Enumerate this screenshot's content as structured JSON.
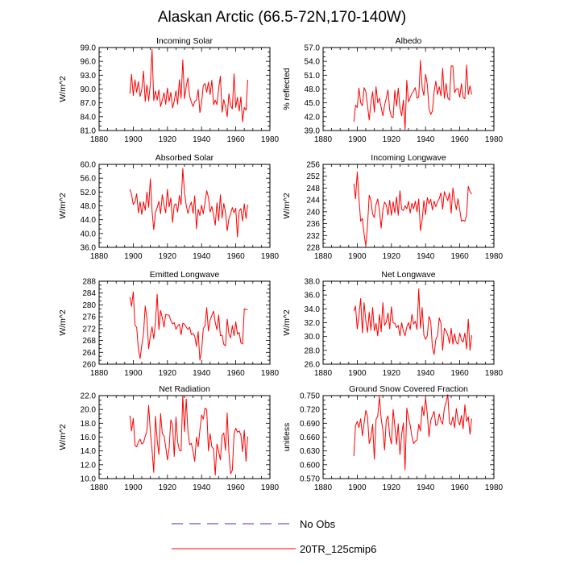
{
  "title": "Alaskan Arctic (66.5-72N,170-140W)",
  "legend": [
    {
      "label": "No Obs",
      "color": "#3333cc",
      "style": "dashed"
    },
    {
      "label": "20TR_125cmip6",
      "color": "#ff0000",
      "style": "solid"
    }
  ],
  "chart_data": [
    {
      "type": "line",
      "title": "Incoming Solar",
      "ylabel": "W/m^2",
      "xlim": [
        1880,
        1980
      ],
      "ylim": [
        81.0,
        99.0
      ],
      "xticks": [
        1880,
        1900,
        1920,
        1940,
        1960,
        1980
      ],
      "yticks": [
        "81.0",
        "84.0",
        "87.0",
        "90.0",
        "93.0",
        "96.0",
        "99.0"
      ],
      "series": [
        {
          "name": "20TR_125cmip6",
          "color": "#ff0000",
          "x_start": 1898,
          "values": [
            89.0,
            93.2,
            88.6,
            92.0,
            89.3,
            91.6,
            88.4,
            89.9,
            93.9,
            87.3,
            90.9,
            87.4,
            91.0,
            98.6,
            87.5,
            89.6,
            87.6,
            89.8,
            86.2,
            87.6,
            89.2,
            86.7,
            90.2,
            87.3,
            89.3,
            85.9,
            87.4,
            89.6,
            86.7,
            92.0,
            88.0,
            96.3,
            87.9,
            90.6,
            92.4,
            88.4,
            87.2,
            86.2,
            87.3,
            87.6,
            89.9,
            84.9,
            87.0,
            90.8,
            91.2,
            89.3,
            91.5,
            88.8,
            91.9,
            86.6,
            87.6,
            86.6,
            90.1,
            92.8,
            85.0,
            87.7,
            86.2,
            84.0,
            89.0,
            86.4,
            85.7,
            93.3,
            86.0,
            88.2,
            85.2,
            88.3,
            82.9,
            86.0,
            85.4,
            92.0
          ]
        }
      ]
    },
    {
      "type": "line",
      "title": "Albedo",
      "ylabel": "% reflected",
      "xlim": [
        1880,
        1980
      ],
      "ylim": [
        39.0,
        57.0
      ],
      "xticks": [
        1880,
        1900,
        1920,
        1940,
        1960,
        1980
      ],
      "yticks": [
        "39.0",
        "42.0",
        "45.0",
        "48.0",
        "51.0",
        "54.0",
        "57.0"
      ],
      "series": [
        {
          "name": "20TR_125cmip6",
          "color": "#ff0000",
          "x_start": 1898,
          "values": [
            40.9,
            44.5,
            44.0,
            48.2,
            45.0,
            44.4,
            48.3,
            47.5,
            44.5,
            41.3,
            45.1,
            47.4,
            43.0,
            48.5,
            45.0,
            46.0,
            44.0,
            42.2,
            44.5,
            46.0,
            47.8,
            43.5,
            42.0,
            41.8,
            47.7,
            44.3,
            48.2,
            43.9,
            42.2,
            45.6,
            39.2,
            49.9,
            45.2,
            46.2,
            47.0,
            47.6,
            48.3,
            46.0,
            46.3,
            54.2,
            48.3,
            46.6,
            51.2,
            49.0,
            43.8,
            42.5,
            43.2,
            47.4,
            49.7,
            46.8,
            48.5,
            46.5,
            52.5,
            46.0,
            49.2,
            46.1,
            45.6,
            53.0,
            53.0,
            47.2,
            48.0,
            48.1,
            46.2,
            49.2,
            46.2,
            45.9,
            53.2,
            46.8,
            48.7,
            46.8
          ]
        }
      ]
    },
    {
      "type": "line",
      "title": "Absorbed Solar",
      "ylabel": "W/m^2",
      "xlim": [
        1880,
        1980
      ],
      "ylim": [
        36.0,
        60.0
      ],
      "xticks": [
        1880,
        1900,
        1920,
        1940,
        1960,
        1980
      ],
      "yticks": [
        "36.0",
        "40.0",
        "44.0",
        "48.0",
        "52.0",
        "56.0",
        "60.0"
      ],
      "series": [
        {
          "name": "20TR_125cmip6",
          "color": "#ff0000",
          "x_start": 1898,
          "values": [
            52.8,
            51.3,
            48.4,
            49.2,
            51.5,
            46.0,
            49.2,
            45.5,
            49.2,
            46.7,
            52.0,
            47.6,
            55.8,
            46.5,
            41.1,
            46.2,
            47.5,
            49.3,
            45.7,
            51.2,
            48.2,
            46.0,
            52.8,
            47.7,
            50.3,
            43.2,
            48.2,
            48.6,
            46.2,
            51.0,
            48.3,
            58.8,
            51.8,
            48.2,
            45.8,
            47.8,
            49.1,
            45.8,
            50.9,
            41.4,
            47.0,
            45.2,
            48.2,
            45.7,
            49.0,
            52.4,
            50.5,
            46.2,
            47.8,
            45.4,
            42.4,
            48.9,
            43.7,
            51.2,
            44.5,
            48.7,
            46.1,
            40.8,
            44.3,
            45.7,
            47.5,
            46.0,
            47.3,
            39.0,
            46.5,
            47.2,
            43.6,
            48.6,
            44.3,
            48.3
          ]
        }
      ]
    },
    {
      "type": "line",
      "title": "Incoming Longwave",
      "ylabel": "W/m^2",
      "xlim": [
        1880,
        1980
      ],
      "ylim": [
        228,
        256
      ],
      "xticks": [
        1880,
        1900,
        1920,
        1940,
        1960,
        1980
      ],
      "yticks": [
        "228",
        "232",
        "236",
        "240",
        "244",
        "248",
        "252",
        "256"
      ],
      "series": [
        {
          "name": "20TR_125cmip6",
          "color": "#ff0000",
          "x_start": 1898,
          "values": [
            249.5,
            244.4,
            253.4,
            244.5,
            236.8,
            237.8,
            232.4,
            228.5,
            235.2,
            245.6,
            243.8,
            239.2,
            238.1,
            242.5,
            244.3,
            240.4,
            234.5,
            240.6,
            243.3,
            242.3,
            238.9,
            243.9,
            238.8,
            243.4,
            239.6,
            245.0,
            238.8,
            247.1,
            240.9,
            240.4,
            242.0,
            241.0,
            243.5,
            239.6,
            242.9,
            241.0,
            243.6,
            240.0,
            244.3,
            233.6,
            237.3,
            243.8,
            239.0,
            244.8,
            242.8,
            244.2,
            240.6,
            243.6,
            241.7,
            243.4,
            244.4,
            246.4,
            240.9,
            246.8,
            245.2,
            243.8,
            246.4,
            239.5,
            248.0,
            244.1,
            240.7,
            244.4,
            240.7,
            236.8,
            237.2,
            236.8,
            238.8,
            248.6,
            246.8,
            246.0
          ]
        }
      ]
    },
    {
      "type": "line",
      "title": "Emitted Longwave",
      "ylabel": "W/m^2",
      "xlim": [
        1880,
        1980
      ],
      "ylim": [
        260,
        288
      ],
      "xticks": [
        1880,
        1900,
        1920,
        1940,
        1960,
        1980
      ],
      "yticks": [
        "260",
        "264",
        "268",
        "272",
        "276",
        "280",
        "284",
        "288"
      ],
      "series": [
        {
          "name": "20TR_125cmip6",
          "color": "#ff0000",
          "x_start": 1898,
          "values": [
            282.6,
            279.5,
            284.4,
            273.2,
            272.4,
            265.1,
            261.9,
            266.5,
            270.2,
            279.6,
            275.4,
            265.2,
            269.5,
            272.6,
            268.6,
            274.1,
            283.6,
            271.7,
            278.1,
            275.7,
            272.5,
            276.8,
            276.6,
            276.5,
            274.7,
            273.6,
            274.0,
            271.8,
            272.9,
            273.5,
            269.9,
            273.8,
            273.5,
            272.5,
            271.7,
            272.5,
            270.0,
            270.4,
            269.4,
            266.0,
            271.0,
            261.4,
            264.5,
            272.1,
            272.9,
            279.1,
            271.2,
            274.9,
            276.4,
            277.9,
            274.1,
            271.6,
            276.6,
            269.6,
            269.8,
            266.7,
            266.2,
            275.2,
            270.2,
            268.9,
            273.0,
            269.6,
            274.3,
            270.1,
            270.7,
            267.2,
            266.8,
            278.7,
            278.4,
            278.5
          ]
        }
      ]
    },
    {
      "type": "line",
      "title": "Net Longwave",
      "ylabel": "W/m^2",
      "xlim": [
        1880,
        1980
      ],
      "ylim": [
        26.0,
        38.0
      ],
      "xticks": [
        1880,
        1900,
        1920,
        1940,
        1960,
        1980
      ],
      "yticks": [
        "26.0",
        "28.0",
        "30.0",
        "32.0",
        "34.0",
        "36.0",
        "38.0"
      ],
      "series": [
        {
          "name": "20TR_125cmip6",
          "color": "#ff0000",
          "x_start": 1898,
          "values": [
            33.7,
            34.4,
            31.1,
            33.0,
            35.5,
            30.5,
            34.9,
            32.3,
            30.6,
            33.5,
            30.9,
            34.2,
            30.8,
            31.9,
            30.1,
            33.2,
            30.7,
            34.9,
            31.6,
            32.1,
            33.4,
            31.1,
            34.3,
            32.0,
            31.9,
            31.3,
            31.6,
            30.1,
            32.0,
            30.8,
            30.1,
            31.4,
            32.0,
            31.0,
            33.2,
            31.8,
            32.2,
            31.0,
            36.9,
            31.2,
            34.2,
            30.2,
            29.6,
            30.1,
            32.9,
            32.2,
            28.4,
            27.4,
            29.6,
            30.1,
            32.7,
            31.9,
            28.0,
            31.2,
            30.8,
            30.2,
            29.0,
            31.2,
            28.9,
            30.4,
            29.1,
            28.9,
            30.5,
            29.5,
            29.2,
            30.5,
            28.2,
            32.5,
            28.0,
            30.2
          ]
        }
      ]
    },
    {
      "type": "line",
      "title": "Net Radiation",
      "ylabel": "W/m^2",
      "xlim": [
        1880,
        1980
      ],
      "ylim": [
        10.0,
        22.0
      ],
      "xticks": [
        1880,
        1900,
        1920,
        1940,
        1960,
        1980
      ],
      "yticks": [
        "10.0",
        "12.0",
        "14.0",
        "16.0",
        "18.0",
        "20.0",
        "22.0"
      ],
      "series": [
        {
          "name": "20TR_125cmip6",
          "color": "#ff0000",
          "x_start": 1898,
          "values": [
            19.1,
            16.9,
            18.7,
            14.8,
            14.6,
            15.3,
            15.7,
            15.0,
            15.2,
            16.1,
            16.9,
            20.6,
            16.8,
            14.1,
            10.9,
            19.0,
            15.6,
            13.5,
            19.4,
            16.5,
            16.2,
            14.6,
            12.7,
            14.4,
            18.5,
            17.7,
            13.2,
            18.9,
            15.3,
            14.1,
            14.0,
            22.0,
            16.8,
            21.5,
            16.9,
            14.9,
            15.1,
            13.9,
            12.5,
            16.0,
            14.6,
            17.0,
            19.2,
            18.6,
            20.2,
            20.0,
            14.0,
            16.5,
            14.6,
            14.3,
            10.5,
            15.0,
            13.9,
            12.7,
            16.2,
            16.6,
            14.1,
            19.5,
            13.7,
            10.7,
            11.2,
            16.4,
            17.3,
            16.7,
            16.9,
            16.3,
            13.9,
            17.0,
            12.5,
            16.1
          ]
        }
      ]
    },
    {
      "type": "line",
      "title": "Ground Snow Covered Fraction",
      "ylabel": "unitless",
      "xlim": [
        1880,
        1980
      ],
      "ylim": [
        0.57,
        0.75
      ],
      "xticks": [
        1880,
        1900,
        1920,
        1940,
        1960,
        1980
      ],
      "yticks": [
        "0.570",
        "0.600",
        "0.630",
        "0.660",
        "0.690",
        "0.720",
        "0.750"
      ],
      "series": [
        {
          "name": "20TR_125cmip6",
          "color": "#ff0000",
          "x_start": 1898,
          "values": [
            0.619,
            0.685,
            0.694,
            0.681,
            0.7,
            0.663,
            0.69,
            0.718,
            0.705,
            0.646,
            0.66,
            0.688,
            0.612,
            0.698,
            0.706,
            0.748,
            0.7,
            0.675,
            0.632,
            0.697,
            0.706,
            0.663,
            0.645,
            0.72,
            0.684,
            0.644,
            0.689,
            0.622,
            0.666,
            0.691,
            0.589,
            0.723,
            0.702,
            0.686,
            0.661,
            0.646,
            0.651,
            0.654,
            0.688,
            0.673,
            0.727,
            0.706,
            0.745,
            0.71,
            0.661,
            0.696,
            0.706,
            0.716,
            0.685,
            0.688,
            0.71,
            0.695,
            0.688,
            0.723,
            0.735,
            0.752,
            0.69,
            0.687,
            0.704,
            0.68,
            0.722,
            0.697,
            0.686,
            0.707,
            0.678,
            0.73,
            0.694,
            0.704,
            0.666,
            0.7
          ]
        }
      ]
    }
  ]
}
